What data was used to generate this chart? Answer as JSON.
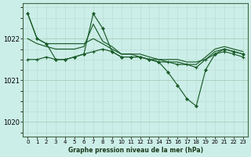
{
  "background_color": "#cceee8",
  "grid_color_major": "#aaccbb",
  "grid_color_minor": "#bbddd4",
  "line_color": "#1a5c2a",
  "title": "Graphe pression niveau de la mer (hPa)",
  "ylabel_ticks": [
    1020,
    1021,
    1022
  ],
  "xlim": [
    -0.5,
    23.5
  ],
  "ylim": [
    1019.65,
    1022.85
  ],
  "series1": {
    "x": [
      0,
      1,
      2,
      3,
      4,
      5,
      6,
      7,
      8,
      9,
      10,
      11,
      12,
      13,
      14,
      15,
      16,
      17,
      18,
      19,
      20,
      21,
      22,
      23
    ],
    "y": [
      1022.6,
      1022.0,
      1021.88,
      1021.88,
      1021.88,
      1021.88,
      1021.88,
      1022.0,
      1021.88,
      1021.75,
      1021.63,
      1021.63,
      1021.63,
      1021.56,
      1021.5,
      1021.5,
      1021.5,
      1021.44,
      1021.44,
      1021.5,
      1021.69,
      1021.75,
      1021.69,
      1021.63
    ]
  },
  "series2": {
    "x": [
      0,
      1,
      2,
      3,
      4,
      5,
      6,
      7,
      8,
      9,
      10,
      11,
      12,
      13,
      14,
      15,
      16,
      17,
      18,
      19,
      20,
      21,
      22,
      23
    ],
    "y": [
      1022.0,
      1021.88,
      1021.81,
      1021.75,
      1021.75,
      1021.75,
      1021.81,
      1022.35,
      1021.94,
      1021.81,
      1021.63,
      1021.63,
      1021.56,
      1021.5,
      1021.5,
      1021.44,
      1021.44,
      1021.38,
      1021.38,
      1021.56,
      1021.75,
      1021.81,
      1021.75,
      1021.69
    ]
  },
  "series3": {
    "x": [
      0,
      1,
      2,
      3,
      4,
      5,
      6,
      7,
      8,
      9,
      10,
      11,
      12,
      13,
      14,
      15,
      16,
      17,
      18,
      19,
      20,
      21,
      22,
      23
    ],
    "y": [
      1021.5,
      1021.5,
      1021.56,
      1021.5,
      1021.5,
      1021.56,
      1021.63,
      1021.69,
      1021.75,
      1021.69,
      1021.56,
      1021.56,
      1021.56,
      1021.5,
      1021.44,
      1021.44,
      1021.38,
      1021.38,
      1021.31,
      1021.5,
      1021.63,
      1021.69,
      1021.63,
      1021.56
    ]
  },
  "series4_with_dip": {
    "x": [
      0,
      1,
      2,
      3,
      4,
      5,
      6,
      7,
      8,
      9,
      10,
      11,
      12,
      13,
      14,
      15,
      16,
      17,
      18,
      19,
      20,
      21,
      22,
      23
    ],
    "y": [
      1022.6,
      1022.0,
      1021.88,
      1021.5,
      1021.5,
      1021.56,
      1021.63,
      1022.6,
      1022.25,
      1021.69,
      1021.56,
      1021.56,
      1021.56,
      1021.5,
      1021.44,
      1021.19,
      1020.88,
      1020.56,
      1020.38,
      1021.25,
      1021.63,
      1021.75,
      1021.69,
      1021.63
    ]
  }
}
